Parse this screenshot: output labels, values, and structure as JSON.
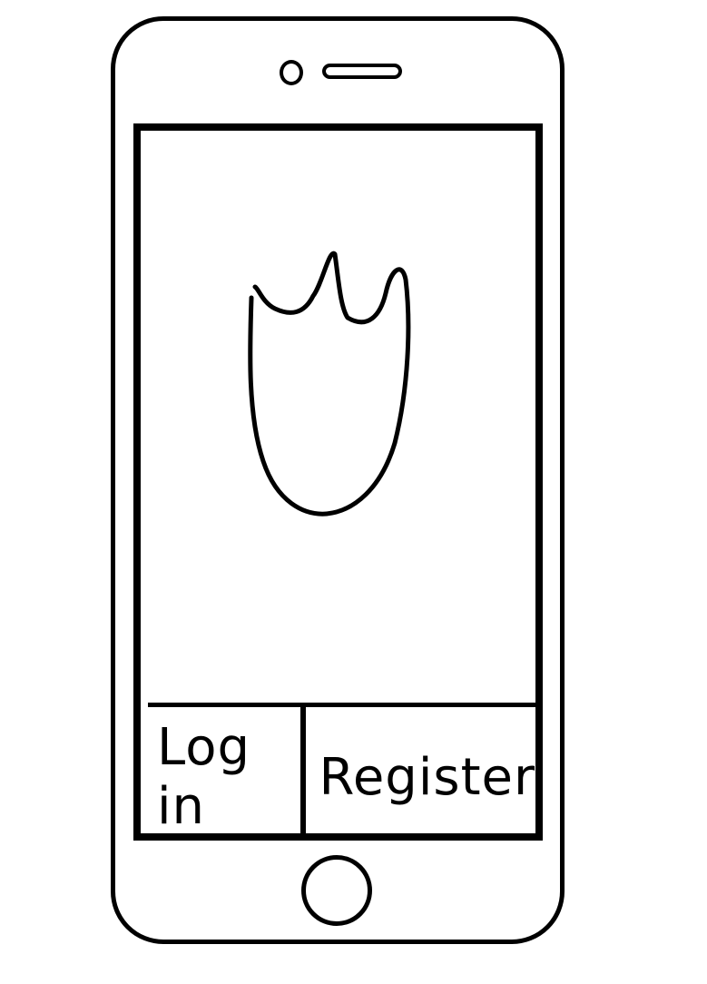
{
  "screen": {
    "logo_icon": "shield-crown-icon",
    "actions": {
      "login_label": "Log in",
      "register_label": "Register"
    }
  },
  "device": {
    "home_icon": "home-button-icon"
  },
  "colors": {
    "stroke": "#000000",
    "background": "#ffffff"
  }
}
